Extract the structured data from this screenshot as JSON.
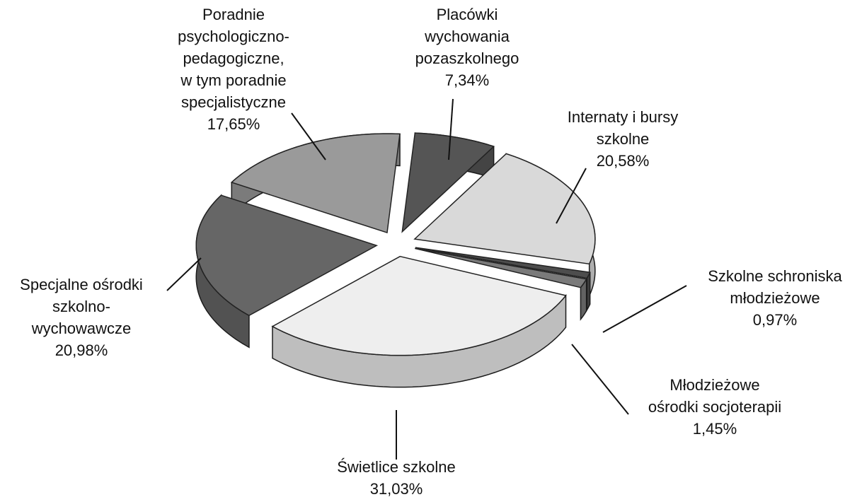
{
  "chart_data": {
    "type": "pie",
    "categories": [
      [
        "Placówki",
        "wychowania",
        "pozaszkolnego"
      ],
      [
        "Internaty i bursy",
        "szkolne"
      ],
      [
        "Szkolne schroniska",
        "młodzieżowe"
      ],
      [
        "Młodzieżowe",
        "ośrodki socjoterapii"
      ],
      [
        "Świetlice szkolne"
      ],
      [
        "Specjalne ośrodki",
        "szkolno-",
        "wychowawcze"
      ],
      [
        "Poradnie",
        "psychologiczno-",
        "pedagogiczne,",
        "w tym poradnie",
        "specjalistyczne"
      ]
    ],
    "values": [
      7.34,
      20.58,
      0.97,
      1.45,
      31.03,
      20.98,
      17.65
    ],
    "value_labels": [
      "7,34%",
      "20,58%",
      "0,97%",
      "1,45%",
      "31,03%",
      "20,98%",
      "17,65%"
    ],
    "colors": [
      "#555555",
      "#d9d9d9",
      "#4d4d4d",
      "#7a7a7a",
      "#eeeeee",
      "#666666",
      "#9a9a9a"
    ]
  }
}
